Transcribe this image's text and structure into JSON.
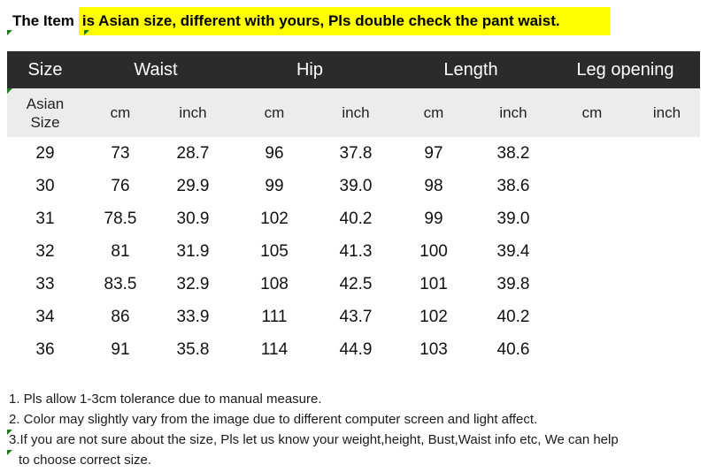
{
  "banner": {
    "lead": "The Item",
    "highlight": "is Asian size, different with yours, Pls double check the pant waist."
  },
  "colors": {
    "header_bg": "#2b2b2b",
    "subheader_bg": "#ececec",
    "highlight": "#ffff00",
    "marker": "#1f7a1f"
  },
  "table": {
    "headers": [
      "Size",
      "Waist",
      "Hip",
      "Length",
      "Leg opening"
    ],
    "size_label_line1": "Asian",
    "size_label_line2": "Size",
    "units": [
      "cm",
      "inch",
      "cm",
      "inch",
      "cm",
      "inch",
      "cm",
      "inch"
    ],
    "rows": [
      [
        "29",
        "73",
        "28.7",
        "96",
        "37.8",
        "97",
        "38.2",
        "",
        ""
      ],
      [
        "30",
        "76",
        "29.9",
        "99",
        "39.0",
        "98",
        "38.6",
        "",
        ""
      ],
      [
        "31",
        "78.5",
        "30.9",
        "102",
        "40.2",
        "99",
        "39.0",
        "",
        ""
      ],
      [
        "32",
        "81",
        "31.9",
        "105",
        "41.3",
        "100",
        "39.4",
        "",
        ""
      ],
      [
        "33",
        "83.5",
        "32.9",
        "108",
        "42.5",
        "101",
        "39.8",
        "",
        ""
      ],
      [
        "34",
        "86",
        "33.9",
        "111",
        "43.7",
        "102",
        "40.2",
        "",
        ""
      ],
      [
        "36",
        "91",
        "35.8",
        "114",
        "44.9",
        "103",
        "40.6",
        "",
        ""
      ]
    ]
  },
  "notes": [
    "1. Pls allow 1-3cm tolerance due to manual measure.",
    "2. Color may slightly vary from the image due to different computer screen and light affect.",
    "3.If you are not sure about the size, Pls let us know your weight,height, Bust,Waist info etc, We can help",
    "to choose correct size."
  ]
}
